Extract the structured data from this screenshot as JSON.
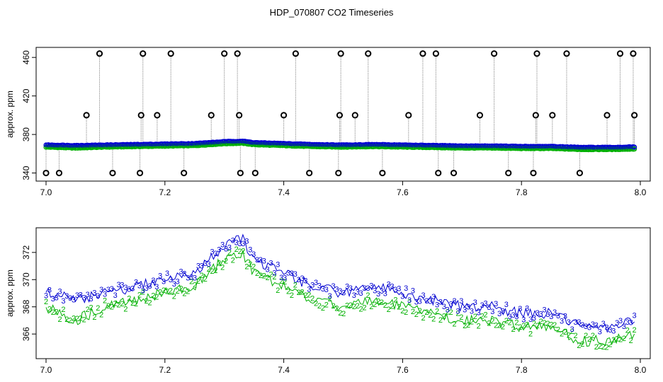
{
  "title": "HDP_070807  CO2 Timeseries",
  "colors": {
    "series2": "#00b000",
    "series3": "#0000d0",
    "outlier": "#000000",
    "spike_line": "#9a9a9a",
    "highlight": "#00c8c8"
  },
  "chart_data": [
    {
      "type": "scatter",
      "ylabel": "approx. ppm",
      "xlim": [
        7.0,
        8.0
      ],
      "ylim": [
        336,
        466
      ],
      "xticks": [
        "7.0",
        "7.2",
        "7.4",
        "7.6",
        "7.8",
        "8.0"
      ],
      "yticks": [
        "340",
        "380",
        "420",
        "460"
      ],
      "baseline_series": [
        {
          "name": "2",
          "points": [
            [
              7.0,
              368
            ],
            [
              7.05,
              367
            ],
            [
              7.1,
              368
            ],
            [
              7.15,
              368.5
            ],
            [
              7.2,
              369
            ],
            [
              7.25,
              369.5
            ],
            [
              7.3,
              371.5
            ],
            [
              7.33,
              372
            ],
            [
              7.35,
              370.5
            ],
            [
              7.4,
              369.5
            ],
            [
              7.45,
              368.5
            ],
            [
              7.5,
              368
            ],
            [
              7.55,
              368.5
            ],
            [
              7.6,
              368
            ],
            [
              7.65,
              367.5
            ],
            [
              7.7,
              367
            ],
            [
              7.75,
              367
            ],
            [
              7.8,
              366.5
            ],
            [
              7.85,
              366.5
            ],
            [
              7.9,
              365.5
            ],
            [
              7.95,
              365.5
            ],
            [
              7.99,
              366
            ]
          ]
        },
        {
          "name": "3",
          "points": [
            [
              7.0,
              369
            ],
            [
              7.05,
              368.5
            ],
            [
              7.1,
              369
            ],
            [
              7.15,
              369.5
            ],
            [
              7.2,
              370
            ],
            [
              7.25,
              370.5
            ],
            [
              7.3,
              372.5
            ],
            [
              7.33,
              373
            ],
            [
              7.35,
              371.5
            ],
            [
              7.4,
              370.5
            ],
            [
              7.45,
              369.5
            ],
            [
              7.5,
              369
            ],
            [
              7.55,
              369.5
            ],
            [
              7.6,
              369
            ],
            [
              7.65,
              368.5
            ],
            [
              7.7,
              368
            ],
            [
              7.75,
              368
            ],
            [
              7.8,
              367.5
            ],
            [
              7.85,
              367.5
            ],
            [
              7.9,
              366.5
            ],
            [
              7.95,
              366.5
            ],
            [
              7.99,
              367
            ]
          ]
        }
      ],
      "outliers": [
        [
          7.0,
          340
        ],
        [
          7.022,
          340
        ],
        [
          7.068,
          400
        ],
        [
          7.09,
          464
        ],
        [
          7.112,
          340
        ],
        [
          7.158,
          340
        ],
        [
          7.16,
          400
        ],
        [
          7.163,
          464
        ],
        [
          7.187,
          400
        ],
        [
          7.21,
          464
        ],
        [
          7.232,
          340
        ],
        [
          7.278,
          400
        ],
        [
          7.3,
          464
        ],
        [
          7.322,
          464
        ],
        [
          7.325,
          400
        ],
        [
          7.327,
          340
        ],
        [
          7.352,
          340
        ],
        [
          7.4,
          400
        ],
        [
          7.42,
          464
        ],
        [
          7.443,
          340
        ],
        [
          7.492,
          340
        ],
        [
          7.494,
          400
        ],
        [
          7.496,
          464
        ],
        [
          7.52,
          400
        ],
        [
          7.542,
          464
        ],
        [
          7.566,
          340
        ],
        [
          7.61,
          400
        ],
        [
          7.634,
          464
        ],
        [
          7.656,
          464
        ],
        [
          7.66,
          340
        ],
        [
          7.686,
          340
        ],
        [
          7.73,
          400
        ],
        [
          7.754,
          464
        ],
        [
          7.778,
          340
        ],
        [
          7.82,
          340
        ],
        [
          7.824,
          400
        ],
        [
          7.826,
          464
        ],
        [
          7.852,
          400
        ],
        [
          7.876,
          464
        ],
        [
          7.898,
          340
        ],
        [
          7.944,
          400
        ],
        [
          7.966,
          464
        ],
        [
          7.988,
          464
        ],
        [
          7.99,
          400
        ]
      ]
    },
    {
      "type": "scatter",
      "ylabel": "approx. ppm",
      "xlim": [
        7.0,
        8.0
      ],
      "ylim": [
        364.5,
        373.5
      ],
      "xticks": [
        "7.0",
        "7.2",
        "7.4",
        "7.6",
        "7.8",
        "8.0"
      ],
      "yticks": [
        "366",
        "368",
        "370",
        "372"
      ],
      "series": [
        {
          "name": "2",
          "marker": "2",
          "points": [
            [
              7.0,
              368
            ],
            [
              7.05,
              367
            ],
            [
              7.1,
              368
            ],
            [
              7.15,
              368.5
            ],
            [
              7.2,
              369
            ],
            [
              7.25,
              369.5
            ],
            [
              7.3,
              371.5
            ],
            [
              7.33,
              372
            ],
            [
              7.35,
              370.5
            ],
            [
              7.4,
              369.5
            ],
            [
              7.45,
              368.5
            ],
            [
              7.5,
              368
            ],
            [
              7.55,
              368.5
            ],
            [
              7.6,
              368
            ],
            [
              7.65,
              367.5
            ],
            [
              7.7,
              367
            ],
            [
              7.75,
              367
            ],
            [
              7.8,
              366.5
            ],
            [
              7.85,
              366.5
            ],
            [
              7.9,
              365.5
            ],
            [
              7.95,
              365.5
            ],
            [
              7.99,
              366
            ]
          ]
        },
        {
          "name": "3",
          "marker": "3",
          "points": [
            [
              7.0,
              369
            ],
            [
              7.05,
              368.5
            ],
            [
              7.1,
              369
            ],
            [
              7.15,
              369.5
            ],
            [
              7.2,
              370
            ],
            [
              7.25,
              370.5
            ],
            [
              7.3,
              372.5
            ],
            [
              7.33,
              373
            ],
            [
              7.35,
              371.5
            ],
            [
              7.4,
              370.5
            ],
            [
              7.45,
              369.5
            ],
            [
              7.5,
              369
            ],
            [
              7.55,
              369.5
            ],
            [
              7.6,
              369
            ],
            [
              7.65,
              368.5
            ],
            [
              7.7,
              368
            ],
            [
              7.75,
              368
            ],
            [
              7.8,
              367.5
            ],
            [
              7.85,
              367.5
            ],
            [
              7.9,
              366.5
            ],
            [
              7.95,
              366.5
            ],
            [
              7.99,
              367
            ]
          ]
        }
      ]
    }
  ]
}
